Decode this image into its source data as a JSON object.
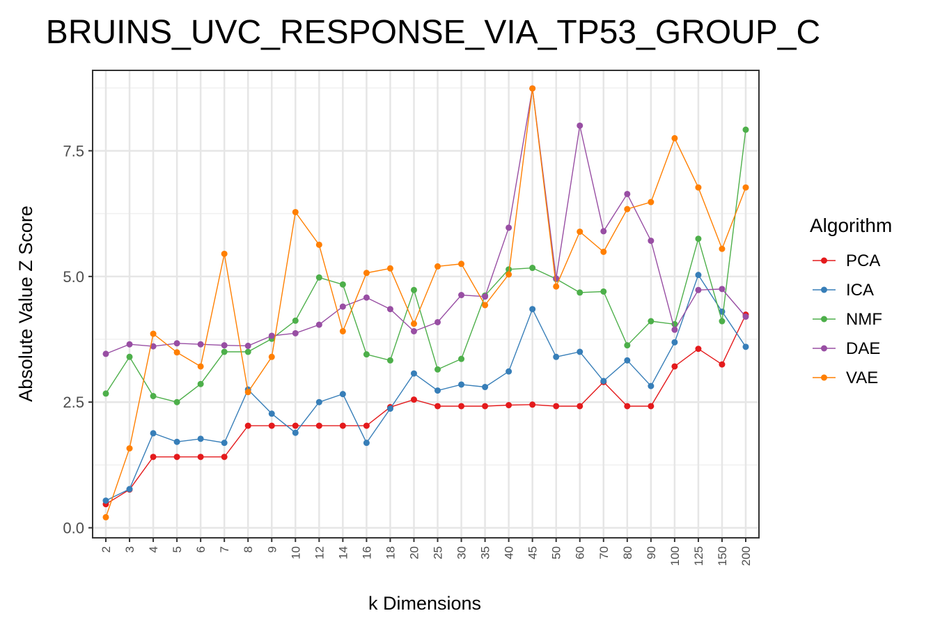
{
  "chart_data": {
    "type": "line",
    "title": "BRUINS_UVC_RESPONSE_VIA_TP53_GROUP_C",
    "xlabel": "k Dimensions",
    "ylabel": "Absolute Value Z Score",
    "categories": [
      "2",
      "3",
      "4",
      "5",
      "6",
      "7",
      "8",
      "9",
      "10",
      "12",
      "14",
      "16",
      "18",
      "20",
      "25",
      "30",
      "35",
      "40",
      "45",
      "50",
      "60",
      "70",
      "80",
      "90",
      "100",
      "125",
      "150",
      "200"
    ],
    "ylim": [
      -0.2,
      9.1
    ],
    "yticks": [
      0.0,
      2.5,
      5.0,
      7.5
    ],
    "ytick_labels": [
      "0.0",
      "2.5",
      "5.0",
      "7.5"
    ],
    "grid": true,
    "legend": {
      "title": "Algorithm",
      "position": "right"
    },
    "series": [
      {
        "name": "PCA",
        "color": "#E41A1C",
        "values": [
          0.47,
          0.76,
          1.41,
          1.41,
          1.41,
          1.41,
          2.03,
          2.03,
          2.03,
          2.03,
          2.03,
          2.03,
          2.4,
          2.55,
          2.42,
          2.42,
          2.42,
          2.44,
          2.45,
          2.42,
          2.42,
          2.9,
          2.42,
          2.42,
          3.21,
          3.56,
          3.25,
          4.24
        ]
      },
      {
        "name": "ICA",
        "color": "#377EB8",
        "values": [
          0.54,
          0.77,
          1.88,
          1.71,
          1.77,
          1.69,
          2.75,
          2.27,
          1.89,
          2.5,
          2.66,
          1.69,
          2.37,
          3.07,
          2.73,
          2.85,
          2.8,
          3.11,
          4.35,
          3.4,
          3.5,
          2.92,
          3.33,
          2.82,
          3.69,
          5.03,
          4.3,
          3.6
        ]
      },
      {
        "name": "NMF",
        "color": "#4DAF4A",
        "values": [
          2.67,
          3.4,
          2.62,
          2.5,
          2.86,
          3.5,
          3.5,
          3.76,
          4.12,
          4.98,
          4.84,
          3.45,
          3.33,
          4.73,
          3.15,
          3.36,
          4.62,
          5.14,
          5.17,
          4.95,
          4.68,
          4.7,
          3.63,
          4.11,
          4.05,
          5.75,
          4.11,
          7.92
        ]
      },
      {
        "name": "DAE",
        "color": "#984EA3",
        "values": [
          3.46,
          3.65,
          3.61,
          3.67,
          3.65,
          3.63,
          3.62,
          3.82,
          3.87,
          4.04,
          4.4,
          4.58,
          4.35,
          3.91,
          4.09,
          4.63,
          4.6,
          5.97,
          8.74,
          4.96,
          8.0,
          5.9,
          6.64,
          5.71,
          3.94,
          4.73,
          4.75,
          4.2
        ]
      },
      {
        "name": "VAE",
        "color": "#FF7F00",
        "values": [
          0.21,
          1.58,
          3.86,
          3.49,
          3.21,
          5.45,
          2.7,
          3.4,
          6.28,
          5.63,
          3.91,
          5.07,
          5.16,
          4.06,
          5.2,
          5.25,
          4.43,
          5.04,
          8.74,
          4.8,
          5.89,
          5.49,
          6.34,
          6.48,
          7.75,
          6.77,
          5.55,
          6.77
        ]
      }
    ]
  }
}
